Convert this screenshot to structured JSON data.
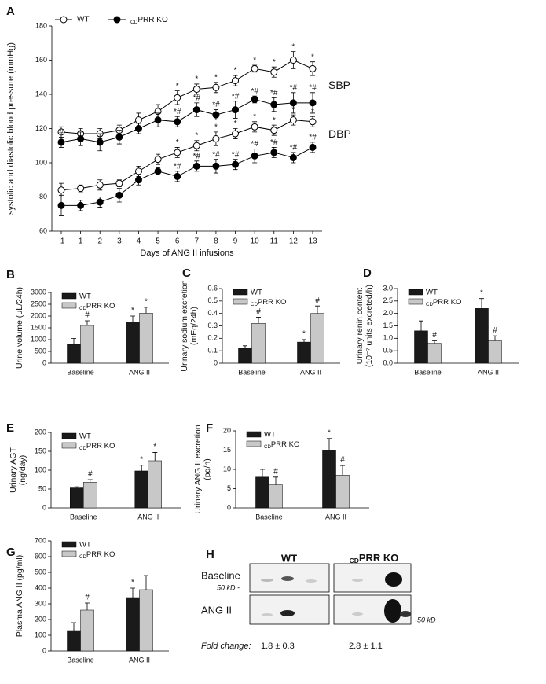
{
  "chart_data": [
    {
      "type": "line",
      "panel": "A",
      "ylabel": "systolic and diastolic blood pressure (mmHg)",
      "xlabel": "Days of ANG II infusions",
      "categories": [
        "-1",
        "1",
        "2",
        "3",
        "4",
        "5",
        "6",
        "7",
        "8",
        "9",
        "10",
        "11",
        "12",
        "13"
      ],
      "ylim": [
        60,
        180
      ],
      "yticks": [
        60,
        80,
        100,
        120,
        140,
        160,
        180
      ],
      "curve_labels": [
        "SBP",
        "DBP"
      ],
      "series": [
        {
          "name": "WT",
          "color": "#ffffff",
          "curves": [
            {
              "values": [
                118,
                117,
                117,
                119,
                125,
                130,
                138,
                143,
                144,
                148,
                155,
                153,
                160,
                155
              ],
              "errors": [
                3,
                3,
                3,
                3,
                4,
                4,
                4,
                3,
                3,
                3,
                2,
                3,
                5,
                4
              ],
              "sig": [
                null,
                null,
                null,
                null,
                null,
                null,
                "*",
                "*",
                "*",
                "*",
                "*",
                "*",
                "*",
                "*"
              ]
            },
            {
              "values": [
                84,
                85,
                87,
                88,
                95,
                102,
                106,
                110,
                114,
                117,
                121,
                119,
                125,
                124
              ],
              "errors": [
                4,
                2,
                3,
                2,
                3,
                3,
                3,
                3,
                4,
                3,
                3,
                3,
                3,
                3
              ],
              "sig": [
                null,
                null,
                null,
                null,
                null,
                null,
                "*",
                "*",
                "*",
                "*",
                "*",
                "*",
                "*",
                "*"
              ]
            }
          ]
        },
        {
          "name": "CDPRR KO",
          "color": "#000000",
          "curves": [
            {
              "values": [
                112,
                114,
                112,
                115,
                120,
                125,
                124,
                131,
                128,
                131,
                137,
                134,
                135,
                135
              ],
              "errors": [
                3,
                4,
                5,
                4,
                3,
                4,
                3,
                4,
                3,
                5,
                2,
                4,
                6,
                6
              ],
              "sig": [
                "#",
                null,
                null,
                null,
                null,
                null,
                "*#",
                "*#",
                "*#",
                "*#",
                "*#",
                "*#",
                "*#",
                "*#"
              ]
            },
            {
              "values": [
                75,
                75,
                77,
                81,
                90,
                95,
                92,
                98,
                98,
                99,
                104,
                106,
                103,
                109
              ],
              "errors": [
                6,
                3,
                3,
                4,
                3,
                2,
                3,
                3,
                4,
                3,
                4,
                3,
                3,
                3
              ],
              "sig": [
                null,
                null,
                null,
                null,
                null,
                null,
                "*#",
                "*#",
                "*#",
                "*#",
                "*#",
                "*#",
                "*#",
                "*#"
              ]
            }
          ]
        }
      ]
    },
    {
      "type": "bar",
      "panel": "B",
      "ylabel": [
        "Urine volume (μL/24h)"
      ],
      "categories": [
        "Baseline",
        "ANG II"
      ],
      "ylim": [
        0,
        3000
      ],
      "yticks": [
        0,
        500,
        1000,
        1500,
        2000,
        2500,
        3000
      ],
      "series": [
        {
          "name": "WT",
          "color": "#1a1a1a",
          "values": [
            800,
            1750
          ],
          "errors": [
            250,
            250
          ],
          "sig": [
            null,
            "*"
          ]
        },
        {
          "name": "CDPRR KO",
          "color": "#c8c8c8",
          "values": [
            1600,
            2120
          ],
          "errors": [
            200,
            250
          ],
          "sig": [
            "#",
            "*"
          ]
        }
      ]
    },
    {
      "type": "bar",
      "panel": "C",
      "ylabel": [
        "Urinary sodium excretion",
        "(mEq/24h)"
      ],
      "categories": [
        "Baseline",
        "ANG II"
      ],
      "ylim": [
        0,
        0.6
      ],
      "yticks": [
        0,
        0.1,
        0.2,
        0.3,
        0.4,
        0.5,
        0.6
      ],
      "series": [
        {
          "name": "WT",
          "color": "#1a1a1a",
          "values": [
            0.12,
            0.17
          ],
          "errors": [
            0.02,
            0.02
          ],
          "sig": [
            null,
            "*"
          ]
        },
        {
          "name": "CDPRR KO",
          "color": "#c8c8c8",
          "values": [
            0.32,
            0.4
          ],
          "errors": [
            0.05,
            0.06
          ],
          "sig": [
            "#",
            "#"
          ]
        }
      ]
    },
    {
      "type": "bar",
      "panel": "D",
      "ylabel": [
        "Urinary renin content",
        "(10⁻⁷ units excreted/h)"
      ],
      "categories": [
        "Baseline",
        "ANG II"
      ],
      "ylim": [
        0,
        3
      ],
      "yticks": [
        {
          "value": 0,
          "label": "0.0"
        },
        0.5,
        {
          "value": 1,
          "label": "1.0"
        },
        1.5,
        {
          "value": 2,
          "label": "2.0"
        },
        2.5,
        {
          "value": 3,
          "label": "3.0"
        }
      ],
      "series": [
        {
          "name": "WT",
          "color": "#1a1a1a",
          "values": [
            1.3,
            2.2
          ],
          "errors": [
            0.4,
            0.4
          ],
          "sig": [
            null,
            "*"
          ]
        },
        {
          "name": "CDPRR KO",
          "color": "#c8c8c8",
          "values": [
            0.8,
            0.9
          ],
          "errors": [
            0.1,
            0.2
          ],
          "sig": [
            "#",
            "#"
          ]
        }
      ]
    },
    {
      "type": "bar",
      "panel": "E",
      "ylabel": [
        "Urinary AGT",
        "(ng/day)"
      ],
      "categories": [
        "Baseline",
        "ANG II"
      ],
      "ylim": [
        0,
        200
      ],
      "yticks": [
        0,
        50,
        100,
        150,
        200
      ],
      "series": [
        {
          "name": "WT",
          "color": "#1a1a1a",
          "values": [
            53,
            98
          ],
          "errors": [
            3,
            15
          ],
          "sig": [
            null,
            "*"
          ]
        },
        {
          "name": "CDPRR KO",
          "color": "#c8c8c8",
          "values": [
            68,
            125
          ],
          "errors": [
            7,
            22
          ],
          "sig": [
            "#",
            "*"
          ]
        }
      ]
    },
    {
      "type": "bar",
      "panel": "F",
      "ylabel": [
        "Urinary ANG II excretion",
        "(pg/h)"
      ],
      "categories": [
        "Baseline",
        "ANG II"
      ],
      "ylim": [
        0,
        20
      ],
      "yticks": [
        0,
        5,
        10,
        15,
        20
      ],
      "series": [
        {
          "name": "WT",
          "color": "#1a1a1a",
          "values": [
            8,
            15
          ],
          "errors": [
            2,
            3
          ],
          "sig": [
            null,
            "*"
          ]
        },
        {
          "name": "CDPRR KO",
          "color": "#c8c8c8",
          "values": [
            6,
            8.5
          ],
          "errors": [
            2,
            2.5
          ],
          "sig": [
            "#",
            "#"
          ]
        }
      ]
    },
    {
      "type": "bar",
      "panel": "G",
      "ylabel": [
        "Plasma ANG II (pg/ml)"
      ],
      "categories": [
        "Baseline",
        "ANG II"
      ],
      "ylim": [
        0,
        700
      ],
      "yticks": [
        0,
        100,
        200,
        300,
        400,
        500,
        600,
        700
      ],
      "series": [
        {
          "name": "WT",
          "color": "#1a1a1a",
          "values": [
            130,
            340
          ],
          "errors": [
            50,
            60
          ],
          "sig": [
            null,
            "*"
          ]
        },
        {
          "name": "CDPRR KO",
          "color": "#c8c8c8",
          "values": [
            260,
            390
          ],
          "errors": [
            45,
            90
          ],
          "sig": [
            "#",
            null
          ]
        }
      ]
    }
  ],
  "panel_h": {
    "letter": "H",
    "groups": [
      "WT",
      "CDPRR KO"
    ],
    "rows": [
      "Baseline",
      "ANG II"
    ],
    "markers": [
      "50 kD -",
      "-50 kD"
    ],
    "fold_change_label": "Fold change:",
    "fold_changes": [
      "1.8 ± 0.3",
      "2.8 ± 1.1"
    ]
  }
}
